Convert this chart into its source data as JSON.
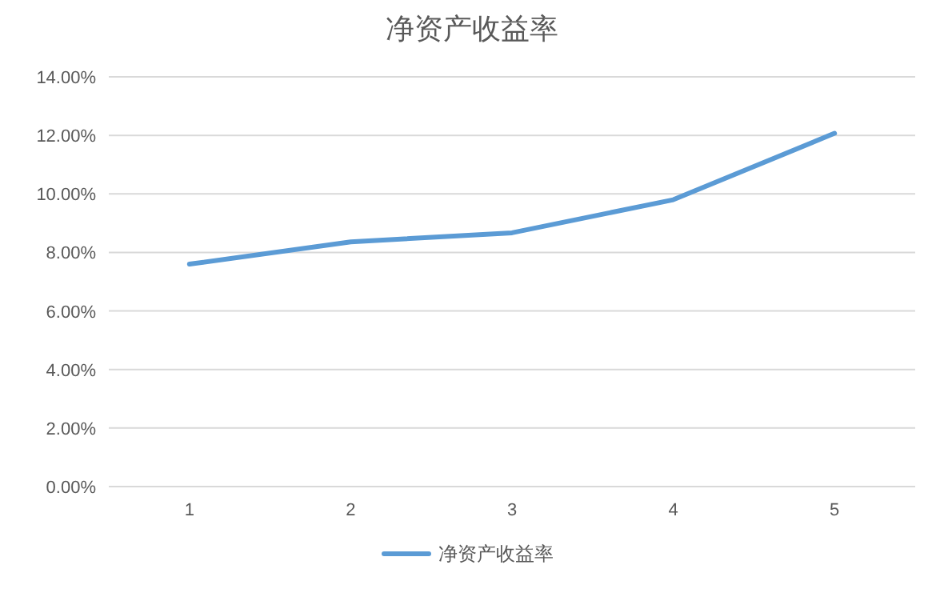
{
  "chart_data": {
    "type": "line",
    "title": "净资产收益率",
    "categories": [
      "1",
      "2",
      "3",
      "4",
      "5"
    ],
    "series": [
      {
        "name": "净资产收益率",
        "color": "#5b9bd5",
        "values": [
          7.6,
          8.36,
          8.67,
          9.8,
          12.07
        ]
      }
    ],
    "ylim": [
      0,
      14
    ],
    "yticks": [
      {
        "value": 0,
        "label": "0.00%"
      },
      {
        "value": 2,
        "label": "2.00%"
      },
      {
        "value": 4,
        "label": "4.00%"
      },
      {
        "value": 6,
        "label": "6.00%"
      },
      {
        "value": 8,
        "label": "8.00%"
      },
      {
        "value": 10,
        "label": "10.00%"
      },
      {
        "value": 12,
        "label": "12.00%"
      },
      {
        "value": 14,
        "label": "14.00%"
      }
    ],
    "grid": "y",
    "legend": "bottom",
    "marker": "none",
    "line_style": "solid"
  }
}
